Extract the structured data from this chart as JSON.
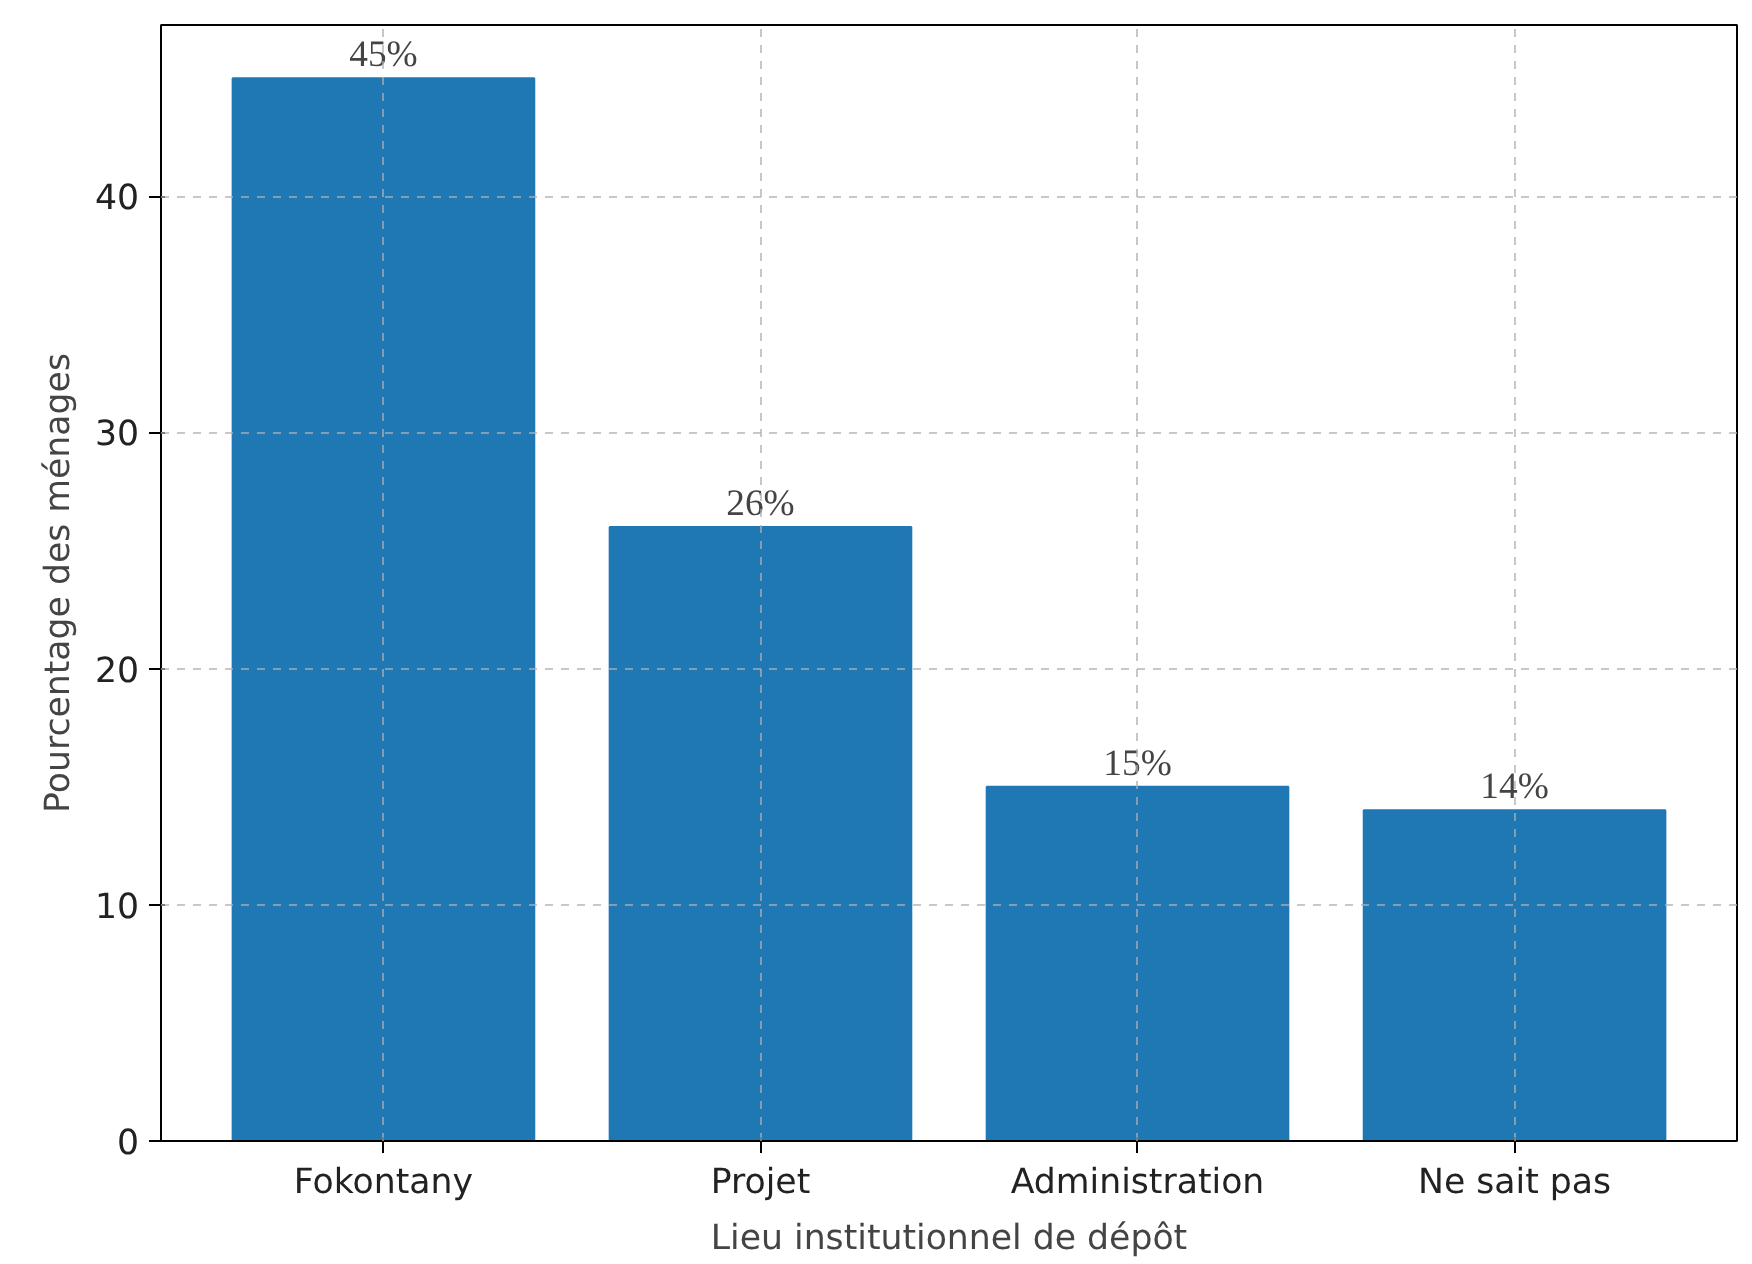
{
  "chart_data": {
    "type": "bar",
    "xlabel": "Lieu institutionnel de dépôt",
    "ylabel": "Pourcentage des ménages",
    "categories": [
      "Fokontany",
      "Projet",
      "Administration",
      "Ne sait pas"
    ],
    "values": [
      45,
      26,
      15,
      14
    ],
    "value_labels": [
      "45%",
      "26%",
      "15%",
      "14%"
    ],
    "color": "#1f77b4",
    "ylim": [
      0,
      47.25
    ],
    "yticks": [
      0,
      10,
      20,
      30,
      40
    ],
    "grid": true
  }
}
